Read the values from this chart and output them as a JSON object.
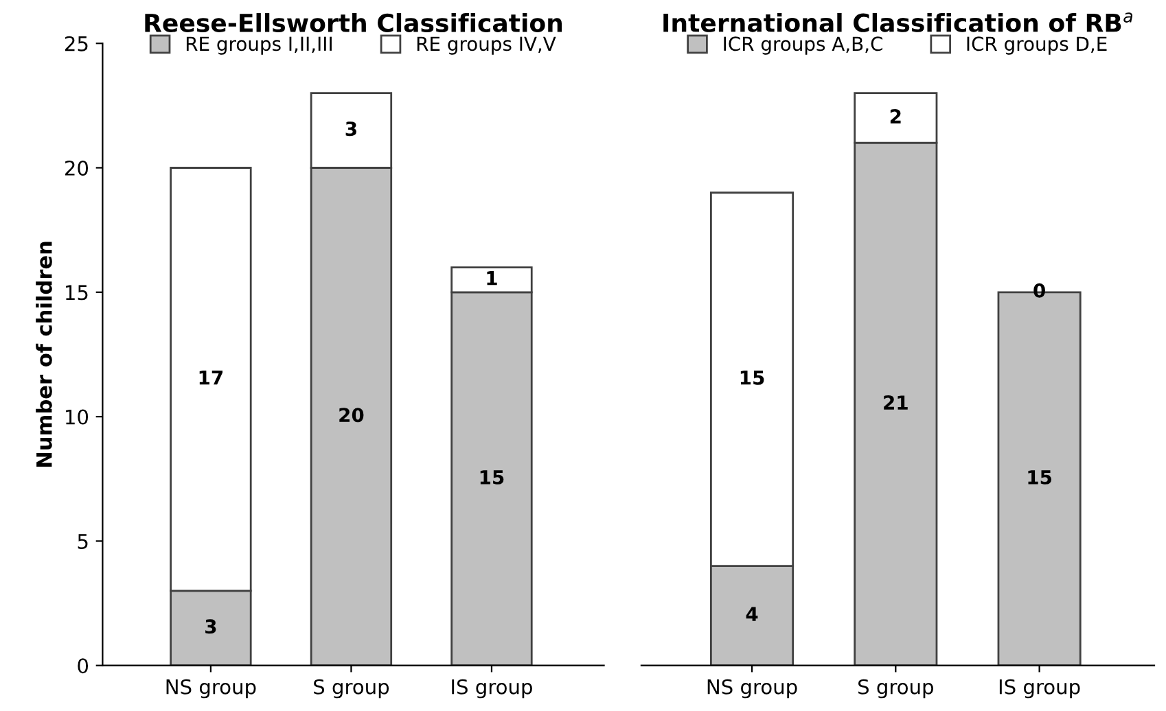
{
  "chart_data": [
    {
      "type": "bar",
      "title": "Reese-Ellsworth Classification",
      "ylabel": "Number of children",
      "categories": [
        "NS group",
        "S group",
        "IS group"
      ],
      "stacked": true,
      "data_labels": true,
      "legend": "top",
      "grid": false,
      "ylim": [
        0,
        25
      ],
      "yticks": [
        0,
        5,
        10,
        15,
        20,
        25
      ],
      "series": [
        {
          "name": "RE groups I,II,III",
          "color": "#c0c0c0",
          "values": [
            3,
            20,
            15
          ]
        },
        {
          "name": "RE groups IV,V",
          "color": "#ffffff",
          "values": [
            17,
            3,
            1
          ]
        }
      ]
    },
    {
      "type": "bar",
      "title": "International Classification of RB$^{a}$",
      "categories": [
        "NS group",
        "S group",
        "IS group"
      ],
      "stacked": true,
      "data_labels": true,
      "legend": "top",
      "grid": false,
      "ylim": [
        0,
        25
      ],
      "tick_labels": "x",
      "series": [
        {
          "name": "ICR groups A,B,C",
          "color": "#c0c0c0",
          "values": [
            4,
            21,
            15
          ]
        },
        {
          "name": "ICR groups D,E",
          "color": "#ffffff",
          "values": [
            15,
            2,
            0
          ]
        }
      ]
    }
  ]
}
